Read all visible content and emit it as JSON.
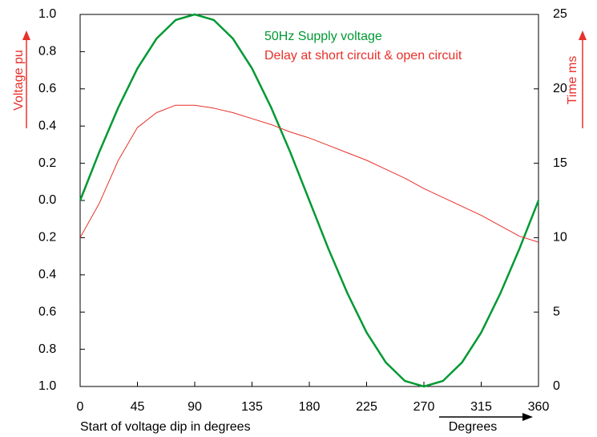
{
  "chart_data": {
    "type": "line",
    "xlabel": "Start of voltage dip in degrees",
    "xlabel2": "Degrees",
    "ylabel": "Voltage pu",
    "y2label": "Time ms",
    "xlim": [
      0,
      360
    ],
    "xticks": [
      0,
      45,
      90,
      135,
      180,
      225,
      270,
      315,
      360
    ],
    "ylim": [
      -1,
      1
    ],
    "yticks": [
      {
        "value": 1,
        "label": "1.0"
      },
      {
        "value": 0.8,
        "label": "0.8"
      },
      {
        "value": 0.6,
        "label": "0.6"
      },
      {
        "value": 0.4,
        "label": "0.4"
      },
      {
        "value": 0.2,
        "label": "0.2"
      },
      {
        "value": 0,
        "label": "0.0"
      },
      {
        "value": -0.2,
        "label": "0.2"
      },
      {
        "value": -0.4,
        "label": "0.4"
      },
      {
        "value": -0.6,
        "label": "0.6"
      },
      {
        "value": -0.8,
        "label": "0.8"
      },
      {
        "value": -1,
        "label": "1.0"
      }
    ],
    "y2lim": [
      0,
      25
    ],
    "y2ticks": [
      0,
      5,
      10,
      15,
      20,
      25
    ],
    "x": [
      0,
      15,
      30,
      45,
      60,
      75,
      90,
      105,
      120,
      135,
      150,
      165,
      180,
      195,
      210,
      225,
      240,
      255,
      270,
      285,
      300,
      315,
      330,
      345,
      360
    ],
    "series": [
      {
        "name": "50Hz Supply voltage",
        "color": "#009933",
        "values": [
          0,
          0.26,
          0.5,
          0.71,
          0.87,
          0.97,
          1,
          0.97,
          0.87,
          0.71,
          0.5,
          0.26,
          0,
          -0.26,
          -0.5,
          -0.71,
          -0.87,
          -0.97,
          -1,
          -0.97,
          -0.87,
          -0.71,
          -0.5,
          -0.26,
          0
        ]
      },
      {
        "name": "Delay at short circuit & open circuit",
        "color": "#e8302a",
        "axis": "y2",
        "values": [
          10,
          12.3,
          15.2,
          17.4,
          18.4,
          18.9,
          18.9,
          18.7,
          18.4,
          18,
          17.6,
          17.1,
          16.7,
          16.2,
          15.7,
          15.2,
          14.6,
          14,
          13.3,
          12.7,
          12.1,
          11.5,
          10.8,
          10.1,
          9.7
        ]
      }
    ]
  }
}
